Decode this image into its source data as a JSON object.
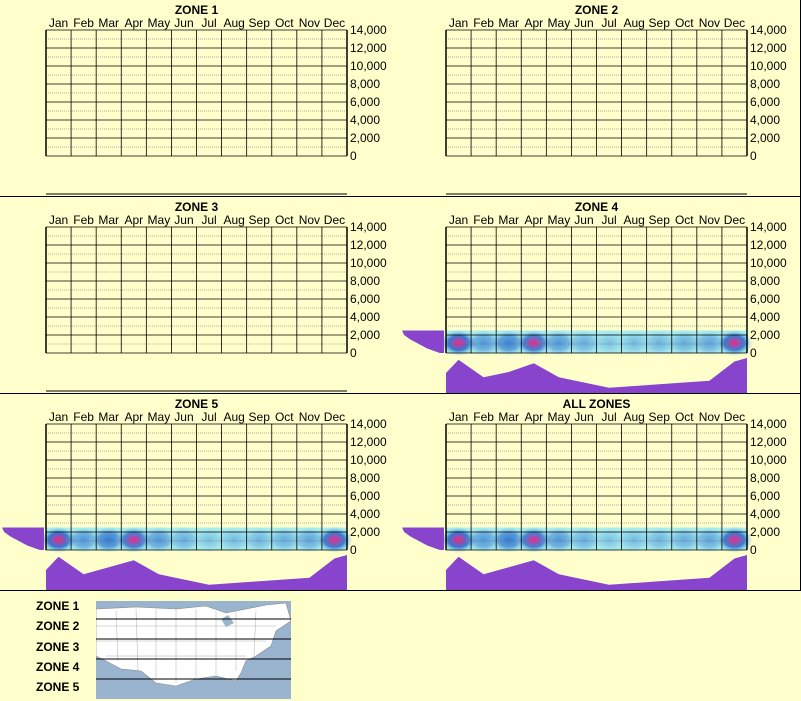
{
  "months": [
    "Jan",
    "Feb",
    "Mar",
    "Apr",
    "May",
    "Jun",
    "Jul",
    "Aug",
    "Sep",
    "Oct",
    "Nov",
    "Dec"
  ],
  "y_ticks": [
    "14,000",
    "12,000",
    "10,000",
    "8,000",
    "6,000",
    "4,000",
    "2,000",
    "0"
  ],
  "colors": {
    "background": "#ffffcc",
    "profile_fill": "#8844cc",
    "heat_low": "#aaeeee",
    "heat_mid": "#2266cc",
    "heat_high": "#ff2288"
  },
  "chart_data": [
    {
      "type": "heatmap",
      "title": "ZONE 1",
      "ylim": [
        0,
        14000
      ],
      "categories": [
        "Jan",
        "Feb",
        "Mar",
        "Apr",
        "May",
        "Jun",
        "Jul",
        "Aug",
        "Sep",
        "Oct",
        "Nov",
        "Dec"
      ],
      "has_data": false
    },
    {
      "type": "heatmap",
      "title": "ZONE 2",
      "ylim": [
        0,
        14000
      ],
      "categories": [
        "Jan",
        "Feb",
        "Mar",
        "Apr",
        "May",
        "Jun",
        "Jul",
        "Aug",
        "Sep",
        "Oct",
        "Nov",
        "Dec"
      ],
      "has_data": false
    },
    {
      "type": "heatmap",
      "title": "ZONE 3",
      "ylim": [
        0,
        14000
      ],
      "categories": [
        "Jan",
        "Feb",
        "Mar",
        "Apr",
        "May",
        "Jun",
        "Jul",
        "Aug",
        "Sep",
        "Oct",
        "Nov",
        "Dec"
      ],
      "has_data": false
    },
    {
      "type": "heatmap",
      "title": "ZONE 4",
      "ylim": [
        0,
        14000
      ],
      "categories": [
        "Jan",
        "Feb",
        "Mar",
        "Apr",
        "May",
        "Jun",
        "Jul",
        "Aug",
        "Sep",
        "Oct",
        "Nov",
        "Dec"
      ],
      "has_data": true,
      "altitude_band": [
        0,
        2500
      ],
      "monthly_intensity": [
        0.95,
        0.45,
        0.6,
        0.85,
        0.45,
        0.3,
        0.15,
        0.2,
        0.25,
        0.3,
        0.35,
        0.9
      ],
      "altitude_profile": [
        [
          0,
          0.1
        ],
        [
          500,
          0.4
        ],
        [
          1000,
          0.6
        ],
        [
          1500,
          0.8
        ],
        [
          2000,
          0.95
        ],
        [
          2500,
          1.0
        ]
      ]
    },
    {
      "type": "heatmap",
      "title": "ZONE 5",
      "ylim": [
        0,
        14000
      ],
      "categories": [
        "Jan",
        "Feb",
        "Mar",
        "Apr",
        "May",
        "Jun",
        "Jul",
        "Aug",
        "Sep",
        "Oct",
        "Nov",
        "Dec"
      ],
      "has_data": true,
      "altitude_band": [
        0,
        2500
      ],
      "monthly_intensity": [
        0.95,
        0.45,
        0.65,
        0.85,
        0.45,
        0.3,
        0.15,
        0.2,
        0.25,
        0.3,
        0.35,
        0.9
      ],
      "altitude_profile": [
        [
          0,
          0.1
        ],
        [
          500,
          0.4
        ],
        [
          1000,
          0.6
        ],
        [
          1500,
          0.8
        ],
        [
          2000,
          0.95
        ],
        [
          2500,
          1.0
        ]
      ]
    },
    {
      "type": "heatmap",
      "title": "ALL ZONES",
      "ylim": [
        0,
        14000
      ],
      "categories": [
        "Jan",
        "Feb",
        "Mar",
        "Apr",
        "May",
        "Jun",
        "Jul",
        "Aug",
        "Sep",
        "Oct",
        "Nov",
        "Dec"
      ],
      "has_data": true,
      "altitude_band": [
        0,
        2500
      ],
      "monthly_intensity": [
        0.95,
        0.45,
        0.65,
        0.85,
        0.45,
        0.3,
        0.15,
        0.2,
        0.25,
        0.3,
        0.35,
        0.9
      ],
      "altitude_profile": [
        [
          0,
          0.1
        ],
        [
          500,
          0.4
        ],
        [
          1000,
          0.6
        ],
        [
          1500,
          0.8
        ],
        [
          2000,
          0.95
        ],
        [
          2500,
          1.0
        ]
      ]
    }
  ],
  "legend": {
    "zones": [
      "ZONE 1",
      "ZONE 2",
      "ZONE 3",
      "ZONE 4",
      "ZONE 5"
    ]
  }
}
